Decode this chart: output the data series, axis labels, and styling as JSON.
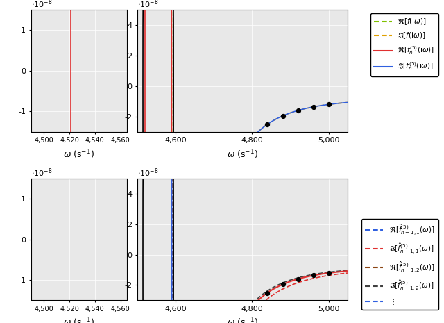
{
  "omega_full_min": 4500,
  "omega_full_max": 5050,
  "omega_zoom_min": 4490,
  "omega_zoom_max": 4565,
  "ylim_main": [
    -3e-08,
    5e-08
  ],
  "ylim_zoom": [
    -1.5e-08,
    1.5e-08
  ],
  "ylim_main2": [
    -3e-08,
    5e-08
  ],
  "ylim_zoom2": [
    -1.5e-08,
    1.5e-08
  ],
  "pole_freq": 4521.0,
  "resonance_freq": 4590.0,
  "bg_color": "#e8e8e8",
  "colors": {
    "re_f": "#80c000",
    "im_f": "#e0a000",
    "re_fn": "#e03030",
    "im_fn": "#3060e0",
    "re_fn_hat1": "#3060e0",
    "im_fn_hat1": "#e03030",
    "re_fn_hat2": "#8B4513",
    "im_fn_hat2": "#404040"
  }
}
